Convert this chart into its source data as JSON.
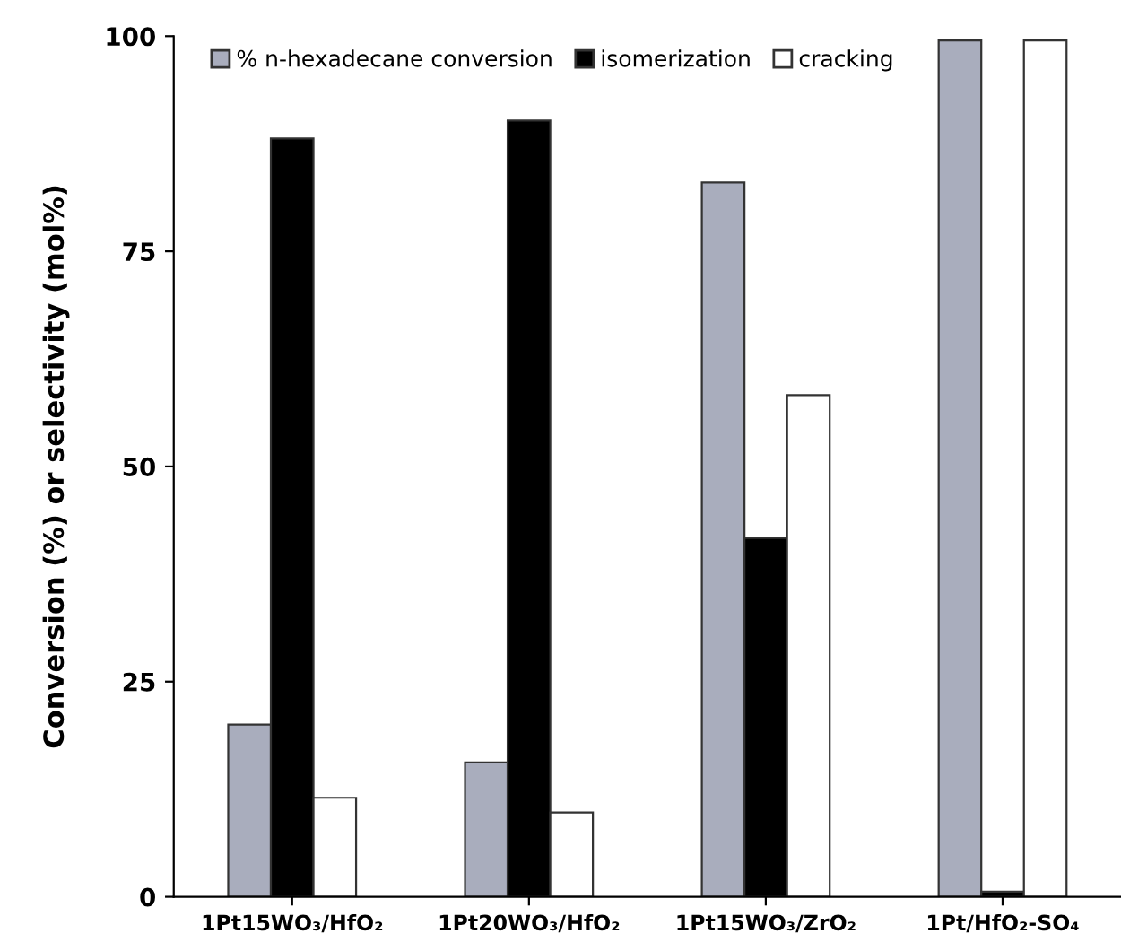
{
  "chart_data": {
    "type": "bar",
    "ylabel": "Conversion (%) or selectivity (mol%)",
    "categories": [
      "1Pt15WO₃/HfO₂",
      "1Pt20WO₃/HfO₂",
      "1Pt15WO₃/ZrO₂",
      "1Pt/HfO₂-SO₄"
    ],
    "series": [
      {
        "name": "% n-hexadecane conversion",
        "color": "#a9adbd",
        "values": [
          20,
          15.6,
          83,
          99.5
        ]
      },
      {
        "name": "isomerization",
        "color": "#000000",
        "values": [
          88.1,
          90.2,
          41.7,
          0.6
        ]
      },
      {
        "name": "cracking",
        "color": "#ffffff",
        "values": [
          11.5,
          9.8,
          58.3,
          99.5
        ]
      }
    ],
    "ylim": [
      0,
      100
    ],
    "yticks": [
      0,
      25,
      50,
      75,
      100
    ],
    "grid": false,
    "legend": "top"
  }
}
